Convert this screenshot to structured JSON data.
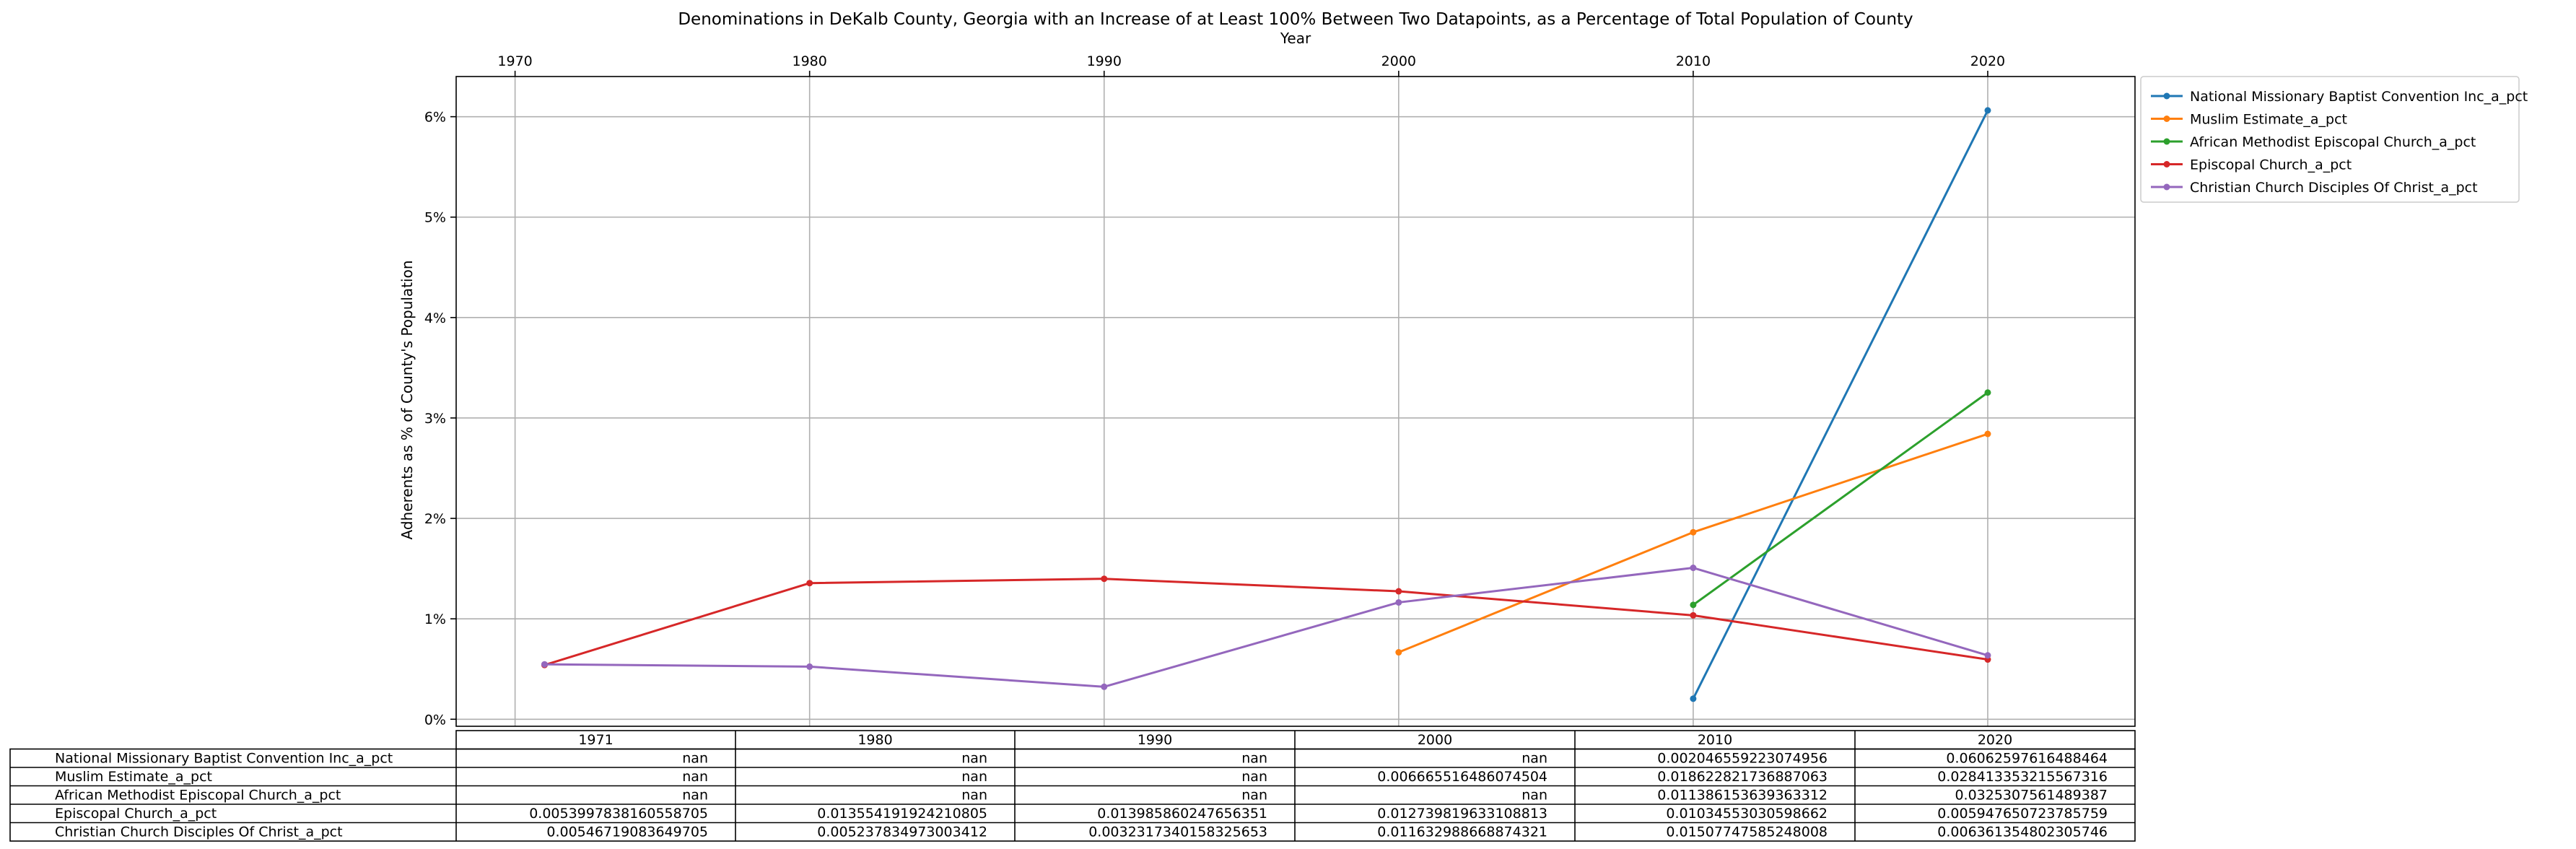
{
  "chart_data": {
    "type": "line",
    "title": "Denominations in DeKalb County, Georgia with an Increase of at Least 100% Between Two Datapoints, as a Percentage of Total Population of County",
    "xlabel": "Year",
    "ylabel": "Adherents as % of County's Population",
    "xlim": [
      1968,
      2025
    ],
    "ylim": [
      -0.0007,
      0.064
    ],
    "x_ticks": [
      1970,
      1980,
      1990,
      2000,
      2010,
      2020
    ],
    "y_ticks": [
      {
        "value": 0.0,
        "label": "0%"
      },
      {
        "value": 0.01,
        "label": "1%"
      },
      {
        "value": 0.02,
        "label": "2%"
      },
      {
        "value": 0.03,
        "label": "3%"
      },
      {
        "value": 0.04,
        "label": "4%"
      },
      {
        "value": 0.05,
        "label": "5%"
      },
      {
        "value": 0.06,
        "label": "6%"
      }
    ],
    "grid": true,
    "legend_position": "outside-top-right",
    "x": [
      1971,
      1980,
      1990,
      2000,
      2010,
      2020
    ],
    "series": [
      {
        "name": "National Missionary Baptist Convention Inc_a_pct",
        "color": "#1f77b4",
        "values": [
          null,
          null,
          null,
          null,
          0.002046559223074956,
          0.06062597616488464
        ]
      },
      {
        "name": "Muslim Estimate_a_pct",
        "color": "#ff7f0e",
        "values": [
          null,
          null,
          null,
          0.006665516486074504,
          0.018622821736887063,
          0.028413353215567316
        ]
      },
      {
        "name": "African Methodist Episcopal Church_a_pct",
        "color": "#2ca02c",
        "values": [
          null,
          null,
          null,
          null,
          0.011386153639363312,
          0.0325307561489387
        ]
      },
      {
        "name": "Episcopal Church_a_pct",
        "color": "#d62728",
        "values": [
          0.00539978381605587,
          0.013554191924210805,
          0.013985860247656351,
          0.012739819633108813,
          0.01034553030598662,
          0.005947650723785759
        ]
      },
      {
        "name": "Christian Church Disciples Of Christ_a_pct",
        "color": "#9467bd",
        "values": [
          0.00546719083649705,
          0.005237834973003412,
          0.003231734015832565,
          0.011632988668874321,
          0.01507747585248008,
          0.006361354802305746
        ]
      }
    ],
    "table": {
      "columns": [
        "1971",
        "1980",
        "1990",
        "2000",
        "2010",
        "2020"
      ],
      "rows": [
        {
          "label": "National Missionary Baptist Convention Inc_a_pct",
          "cells": [
            "nan",
            "nan",
            "nan",
            "nan",
            "0.0020465592230749 56",
            "0.06062597616488464"
          ]
        },
        {
          "label": "Muslim Estimate_a_pct",
          "cells": [
            "nan",
            "nan",
            "nan",
            "0.006665516486074504",
            "0.018622821736887063",
            "0.028413353215567316"
          ]
        },
        {
          "label": "African Methodist Episcopal Church_a_pct",
          "cells": [
            "nan",
            "nan",
            "nan",
            "nan",
            "0.011386153639363312",
            "0.0325307561489387"
          ]
        },
        {
          "label": "Episcopal Church_a_pct",
          "cells": [
            "0.0053997838160558705",
            "0.013554191924210805",
            "0.013985860247656351",
            "0.012739819633108813",
            "0.01034553030598662",
            "0.005947650723785759"
          ]
        },
        {
          "label": "Christian Church Disciples Of Christ_a_pct",
          "cells": [
            "0.00546719083649705",
            "0.005237834973003412",
            "0.0032317340158325653",
            "0.011632988668874321",
            "0.01507747585248008",
            "0.006361354802305746"
          ]
        }
      ]
    }
  }
}
